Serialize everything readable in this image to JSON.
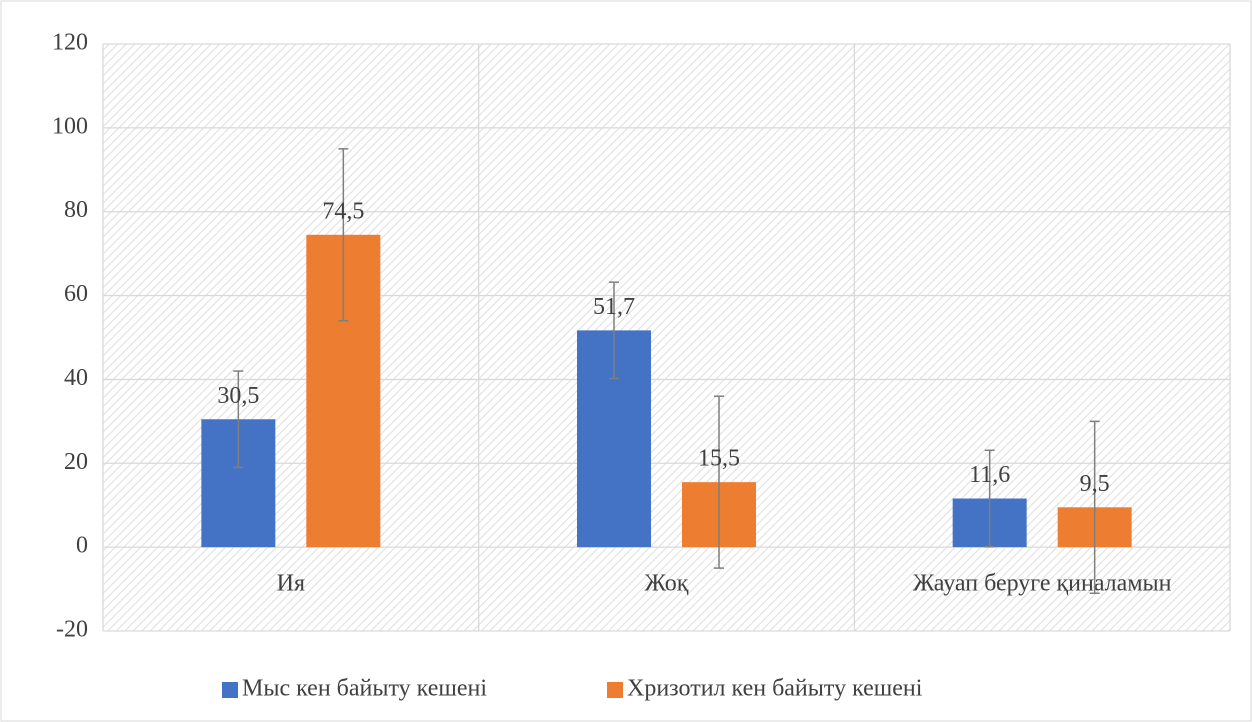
{
  "chart_data": {
    "type": "bar",
    "categories": [
      "Ия",
      "Жоқ",
      "Жауап беруге қиналамын"
    ],
    "series": [
      {
        "name": "Мыс кен байыту кешені",
        "color": "#4472c4",
        "values": [
          30.5,
          51.7,
          11.6
        ],
        "value_labels": [
          "30,5",
          "51,7",
          "11,6"
        ],
        "errors": [
          11.5,
          11.5,
          11.5
        ]
      },
      {
        "name": "Хризотил кен байыту кешені",
        "color": "#ed7d31",
        "values": [
          74.5,
          15.5,
          9.5
        ],
        "value_labels": [
          "74,5",
          "15,5",
          "9,5"
        ],
        "errors": [
          20.5,
          20.5,
          20.5
        ]
      }
    ],
    "ylim": [
      -20,
      120
    ],
    "yticks": [
      -20,
      0,
      20,
      40,
      60,
      80,
      100,
      120
    ],
    "grid": true,
    "legend": "bottom"
  }
}
